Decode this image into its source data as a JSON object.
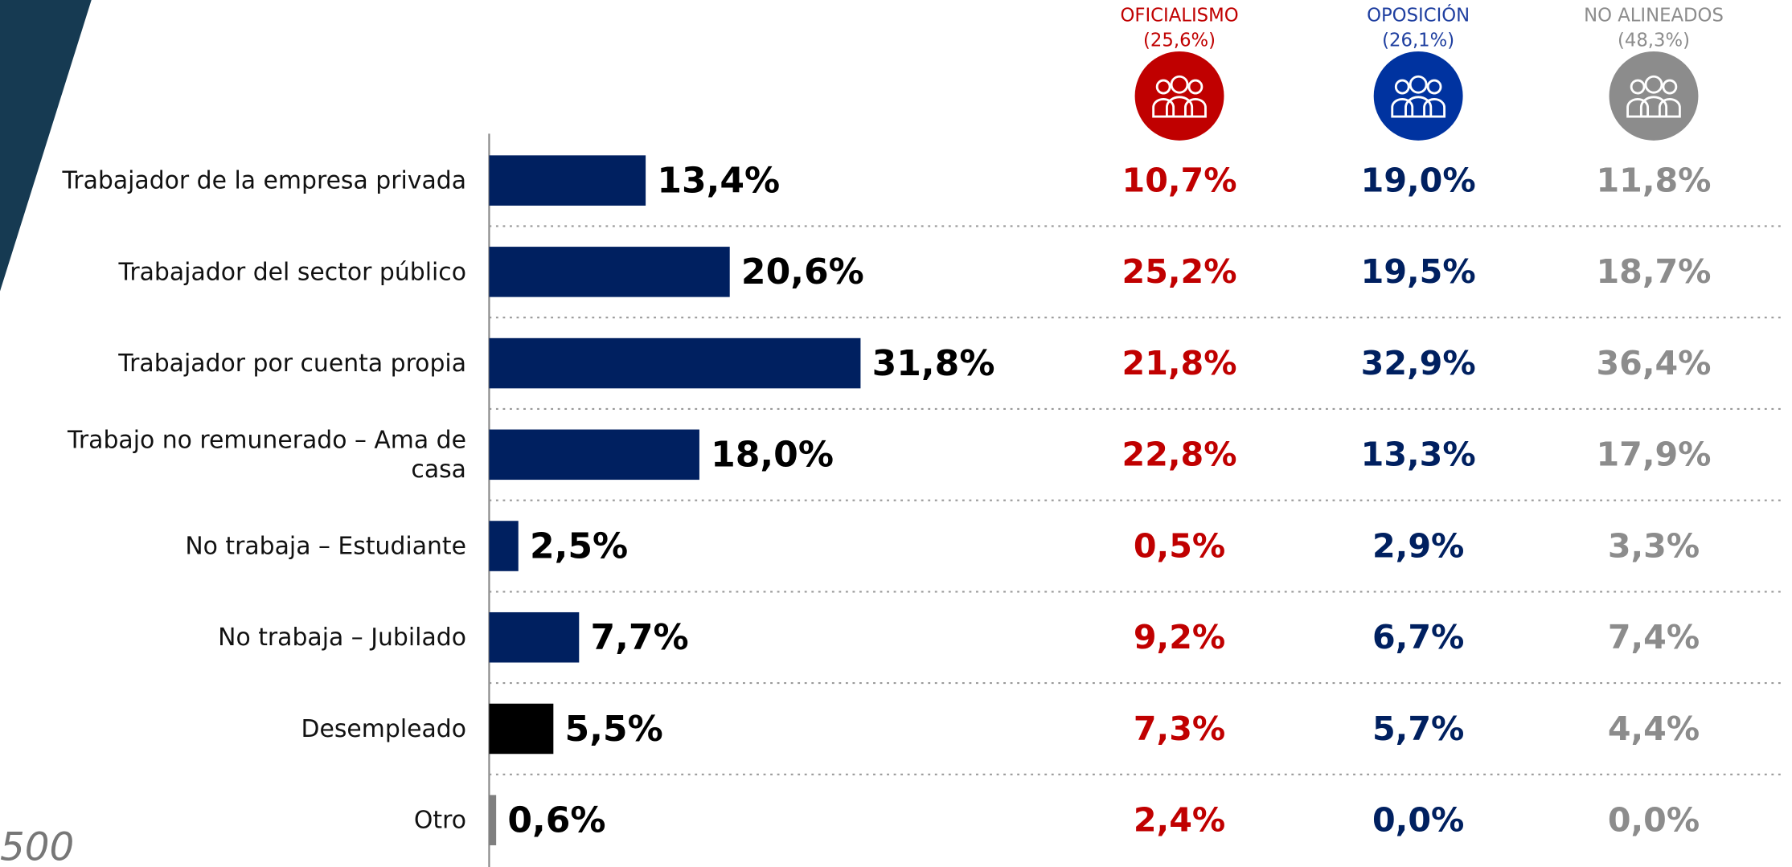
{
  "chart_data": {
    "type": "bar",
    "orientation": "horizontal",
    "categories": [
      "Trabajador de la empresa privada",
      "Trabajador del sector público",
      "Trabajador por cuenta propia",
      "Trabajo no remunerado – Ama de casa",
      "No trabaja – Estudiante",
      "No trabaja – Jubilado",
      "Desempleado",
      "Otro"
    ],
    "values": [
      13.4,
      20.6,
      31.8,
      18.0,
      2.5,
      7.7,
      5.5,
      0.6
    ],
    "value_labels": [
      "13,4%",
      "20,6%",
      "31,8%",
      "18,0%",
      "2,5%",
      "7,7%",
      "5,5%",
      "0,6%"
    ],
    "colors": [
      "#002060",
      "#002060",
      "#002060",
      "#002060",
      "#002060",
      "#002060",
      "#000000",
      "#7f7f7f"
    ]
  },
  "table": {
    "columns": [
      {
        "name": "OFICIALISMO",
        "share": "(25,6%)",
        "color": "#c00000",
        "icon_color": "#c00000",
        "values": [
          "10,7%",
          "25,2%",
          "21,8%",
          "22,8%",
          "0,5%",
          "9,2%",
          "7,3%",
          "2,4%"
        ]
      },
      {
        "name": "OPOSICIÓN",
        "share": "(26,1%)",
        "color": "#002060",
        "icon_color": "#0033a0",
        "values": [
          "19,0%",
          "19,5%",
          "32,9%",
          "13,3%",
          "2,9%",
          "6,7%",
          "5,7%",
          "0,0%"
        ]
      },
      {
        "name": "NO ALINEADOS",
        "share": "(48,3%)",
        "color": "#8c8c8c",
        "icon_color": "#8c8c8c",
        "values": [
          "11,8%",
          "18,7%",
          "36,4%",
          "17,9%",
          "3,3%",
          "7,4%",
          "4,4%",
          "0,0%"
        ]
      }
    ]
  },
  "footnote": "500"
}
